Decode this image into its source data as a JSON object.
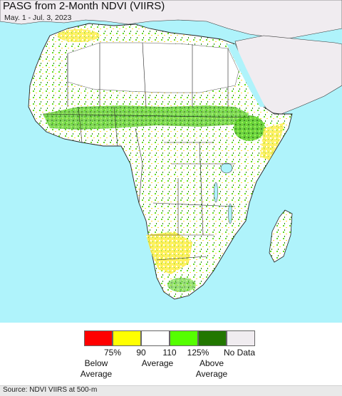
{
  "title": "PASG from 2-Month NDVI (VIIRS)",
  "subtitle": "May. 1 - Jul. 3, 2023",
  "legend": {
    "swatch_colors": [
      "#ff0000",
      "#ffff00",
      "#ffffff",
      "#55ff00",
      "#227700",
      "#f0ecf0"
    ],
    "ticks": [
      "75%",
      "90",
      "110",
      "125%",
      "No Data"
    ],
    "below_average": "Below Average",
    "average": "Average",
    "above_average": "Above Average"
  },
  "source": "Source: NDVI VIIRS at 500-m",
  "colors": {
    "water": "#aff3fb",
    "no_data_land": "#f0ecf0",
    "average_land": "#ffffff",
    "border": "#222222"
  }
}
